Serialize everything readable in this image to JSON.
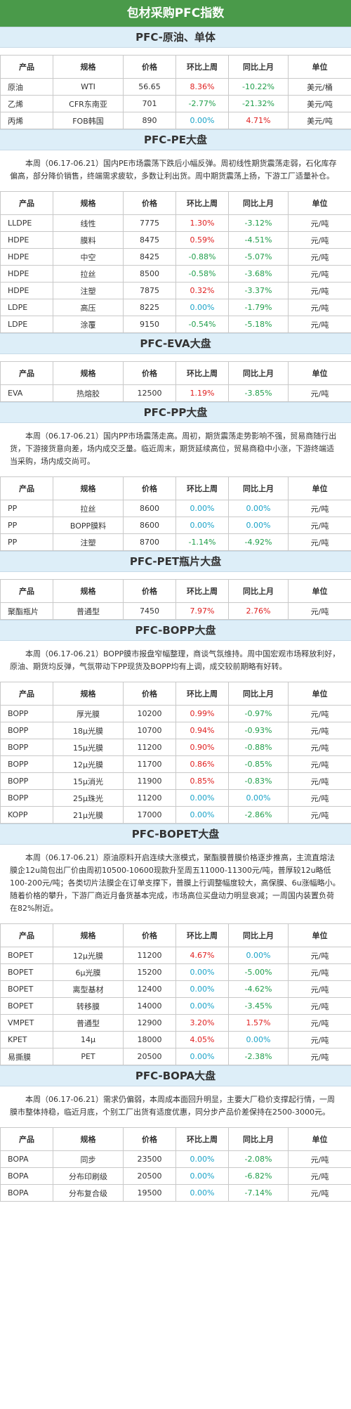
{
  "title": "包材采购PFC指数",
  "headers": [
    "产品",
    "规格",
    "价格",
    "环比上周",
    "同比上月",
    "单位"
  ],
  "sections": [
    {
      "heading": "PFC-原油、单体",
      "desc": "",
      "rows": [
        {
          "prod": "原油",
          "spec": "WTI",
          "price": "56.65",
          "wk": "8.36%",
          "wk_dir": "up",
          "mo": "-10.22%",
          "mo_dir": "down",
          "unit": "美元/桶"
        },
        {
          "prod": "乙烯",
          "spec": "CFR东南亚",
          "price": "701",
          "wk": "-2.77%",
          "wk_dir": "down",
          "mo": "-21.32%",
          "mo_dir": "down",
          "unit": "美元/吨"
        },
        {
          "prod": "丙烯",
          "spec": "FOB韩国",
          "price": "890",
          "wk": "0.00%",
          "wk_dir": "flat",
          "mo": "4.71%",
          "mo_dir": "up",
          "unit": "美元/吨"
        }
      ]
    },
    {
      "heading": "PFC-PE大盘",
      "desc": "本周（06.17-06.21）国内PE市场震荡下跌后小幅反弹。周初线性期货震荡走弱，石化库存偏高，部分降价销售，终端需求疲软，多数让利出货。周中期货震荡上扬，下游工厂适量补仓。",
      "rows": [
        {
          "prod": "LLDPE",
          "spec": "线性",
          "price": "7775",
          "wk": "1.30%",
          "wk_dir": "up",
          "mo": "-3.12%",
          "mo_dir": "down",
          "unit": "元/吨"
        },
        {
          "prod": "HDPE",
          "spec": "膜料",
          "price": "8475",
          "wk": "0.59%",
          "wk_dir": "up",
          "mo": "-4.51%",
          "mo_dir": "down",
          "unit": "元/吨"
        },
        {
          "prod": "HDPE",
          "spec": "中空",
          "price": "8425",
          "wk": "-0.88%",
          "wk_dir": "down",
          "mo": "-5.07%",
          "mo_dir": "down",
          "unit": "元/吨"
        },
        {
          "prod": "HDPE",
          "spec": "拉丝",
          "price": "8500",
          "wk": "-0.58%",
          "wk_dir": "down",
          "mo": "-3.68%",
          "mo_dir": "down",
          "unit": "元/吨"
        },
        {
          "prod": "HDPE",
          "spec": "注塑",
          "price": "7875",
          "wk": "0.32%",
          "wk_dir": "up",
          "mo": "-3.37%",
          "mo_dir": "down",
          "unit": "元/吨"
        },
        {
          "prod": "LDPE",
          "spec": "高压",
          "price": "8225",
          "wk": "0.00%",
          "wk_dir": "flat",
          "mo": "-1.79%",
          "mo_dir": "down",
          "unit": "元/吨"
        },
        {
          "prod": "LDPE",
          "spec": "涂覆",
          "price": "9150",
          "wk": "-0.54%",
          "wk_dir": "down",
          "mo": "-5.18%",
          "mo_dir": "down",
          "unit": "元/吨"
        }
      ]
    },
    {
      "heading": "PFC-EVA大盘",
      "desc": "",
      "rows": [
        {
          "prod": "EVA",
          "spec": "热熔胶",
          "price": "12500",
          "wk": "1.19%",
          "wk_dir": "up",
          "mo": "-3.85%",
          "mo_dir": "down",
          "unit": "元/吨"
        }
      ]
    },
    {
      "heading": "PFC-PP大盘",
      "desc": "本周（06.17-06.21）国内PP市场震荡走高。周初，期货震荡走势影响不强，贸易商随行出货，下游接货意向差，场内成交乏量。临近周末，期货延续高位，贸易商稳中小涨，下游终端适当采购，场内成交尚可。",
      "rows": [
        {
          "prod": "PP",
          "spec": "拉丝",
          "price": "8600",
          "wk": "0.00%",
          "wk_dir": "flat",
          "mo": "0.00%",
          "mo_dir": "flat",
          "unit": "元/吨"
        },
        {
          "prod": "PP",
          "spec": "BOPP膜料",
          "price": "8600",
          "wk": "0.00%",
          "wk_dir": "flat",
          "mo": "0.00%",
          "mo_dir": "flat",
          "unit": "元/吨"
        },
        {
          "prod": "PP",
          "spec": "注塑",
          "price": "8700",
          "wk": "-1.14%",
          "wk_dir": "down",
          "mo": "-4.92%",
          "mo_dir": "down",
          "unit": "元/吨"
        }
      ]
    },
    {
      "heading": "PFC-PET瓶片大盘",
      "desc": "",
      "rows": [
        {
          "prod": "聚酯瓶片",
          "spec": "普通型",
          "price": "7450",
          "wk": "7.97%",
          "wk_dir": "up",
          "mo": "2.76%",
          "mo_dir": "up",
          "unit": "元/吨"
        }
      ]
    },
    {
      "heading": "PFC-BOPP大盘",
      "desc": "本周（06.17-06.21）BOPP膜市报盘窄幅整理，商谈气氛维持。周中国宏观市场释放利好，原油、期货均反弹，气氛带动下PP现货及BOPP均有上调，成交较前期略有好转。",
      "rows": [
        {
          "prod": "BOPP",
          "spec": "厚光膜",
          "price": "10200",
          "wk": "0.99%",
          "wk_dir": "up",
          "mo": "-0.97%",
          "mo_dir": "down",
          "unit": "元/吨"
        },
        {
          "prod": "BOPP",
          "spec": "18μ光膜",
          "price": "10700",
          "wk": "0.94%",
          "wk_dir": "up",
          "mo": "-0.93%",
          "mo_dir": "down",
          "unit": "元/吨"
        },
        {
          "prod": "BOPP",
          "spec": "15μ光膜",
          "price": "11200",
          "wk": "0.90%",
          "wk_dir": "up",
          "mo": "-0.88%",
          "mo_dir": "down",
          "unit": "元/吨"
        },
        {
          "prod": "BOPP",
          "spec": "12μ光膜",
          "price": "11700",
          "wk": "0.86%",
          "wk_dir": "up",
          "mo": "-0.85%",
          "mo_dir": "down",
          "unit": "元/吨"
        },
        {
          "prod": "BOPP",
          "spec": "15μ消光",
          "price": "11900",
          "wk": "0.85%",
          "wk_dir": "up",
          "mo": "-0.83%",
          "mo_dir": "down",
          "unit": "元/吨"
        },
        {
          "prod": "BOPP",
          "spec": "25μ珠光",
          "price": "11200",
          "wk": "0.00%",
          "wk_dir": "flat",
          "mo": "0.00%",
          "mo_dir": "flat",
          "unit": "元/吨"
        },
        {
          "prod": "KOPP",
          "spec": "21μ光膜",
          "price": "17000",
          "wk": "0.00%",
          "wk_dir": "flat",
          "mo": "-2.86%",
          "mo_dir": "down",
          "unit": "元/吨"
        }
      ]
    },
    {
      "heading": "PFC-BOPET大盘",
      "desc": "本周（06.17-06.21）原油原料开启连续大涨模式，聚酯膜普膜价格逐步推高，主流直熔法膜企12u简包出厂价由周初10500-10600现款升至周五11000-11300元/吨，普厚较12u略低100-200元/吨；各类切片法膜企在订单支撑下，普膜上行调整幅度较大，高保膜、6u涨幅略小。随着价格的攀升，下游厂商近月备货基本完成，市场高位买盘动力明显衰减；一周国内装置负荷在82%附近。",
      "rows": [
        {
          "prod": "BOPET",
          "spec": "12μ光膜",
          "price": "11200",
          "wk": "4.67%",
          "wk_dir": "up",
          "mo": "0.00%",
          "mo_dir": "flat",
          "unit": "元/吨"
        },
        {
          "prod": "BOPET",
          "spec": "6μ光膜",
          "price": "15200",
          "wk": "0.00%",
          "wk_dir": "flat",
          "mo": "-5.00%",
          "mo_dir": "down",
          "unit": "元/吨"
        },
        {
          "prod": "BOPET",
          "spec": "离型基材",
          "price": "12400",
          "wk": "0.00%",
          "wk_dir": "flat",
          "mo": "-4.62%",
          "mo_dir": "down",
          "unit": "元/吨"
        },
        {
          "prod": "BOPET",
          "spec": "转移膜",
          "price": "14000",
          "wk": "0.00%",
          "wk_dir": "flat",
          "mo": "-3.45%",
          "mo_dir": "down",
          "unit": "元/吨"
        },
        {
          "prod": "VMPET",
          "spec": "普通型",
          "price": "12900",
          "wk": "3.20%",
          "wk_dir": "up",
          "mo": "1.57%",
          "mo_dir": "up",
          "unit": "元/吨"
        },
        {
          "prod": "KPET",
          "spec": "14μ",
          "price": "18000",
          "wk": "4.05%",
          "wk_dir": "up",
          "mo": "0.00%",
          "mo_dir": "flat",
          "unit": "元/吨"
        },
        {
          "prod": "易撕膜",
          "spec": "PET",
          "price": "20500",
          "wk": "0.00%",
          "wk_dir": "flat",
          "mo": "-2.38%",
          "mo_dir": "down",
          "unit": "元/吨"
        }
      ]
    },
    {
      "heading": "PFC-BOPA大盘",
      "desc": "本周（06.17-06.21）需求仍偏弱，本周成本面回升明显，主要大厂稳价支撑起行情，一周膜市整体持稳，临近月底，个别工厂出货有适度优惠，同分步产品价差保持在2500-3000元。",
      "rows": [
        {
          "prod": "BOPA",
          "spec": "同步",
          "price": "23500",
          "wk": "0.00%",
          "wk_dir": "flat",
          "mo": "-2.08%",
          "mo_dir": "down",
          "unit": "元/吨"
        },
        {
          "prod": "BOPA",
          "spec": "分布印刷级",
          "price": "20500",
          "wk": "0.00%",
          "wk_dir": "flat",
          "mo": "-6.82%",
          "mo_dir": "down",
          "unit": "元/吨"
        },
        {
          "prod": "BOPA",
          "spec": "分布复合级",
          "price": "19500",
          "wk": "0.00%",
          "wk_dir": "flat",
          "mo": "-7.14%",
          "mo_dir": "down",
          "unit": "元/吨"
        }
      ]
    }
  ]
}
